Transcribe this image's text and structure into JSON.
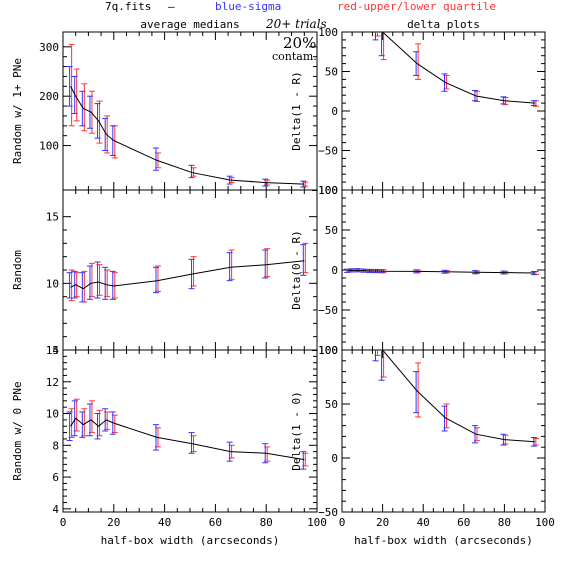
{
  "header": {
    "file": "7q.fits",
    "dash": "—",
    "blue_label": "blue-sigma",
    "red_label": "red-upper/lower quartile",
    "trials": "20+ trials",
    "contam_pct": "20%",
    "contam_word": "contam."
  },
  "colors": {
    "line": "#000000",
    "sigma": "#3333ff",
    "quartile": "#ff3333"
  },
  "chart_data": [
    {
      "id": "p1",
      "type": "line",
      "title": "average medians",
      "ylabel": "Random w/ 1+ PNe",
      "xlabel": "",
      "xlim": [
        0,
        100
      ],
      "ylim": [
        10,
        330
      ],
      "xticks": [
        0,
        20,
        40,
        60,
        80,
        100
      ],
      "show_xticklabels": false,
      "yticks": [
        100,
        200,
        300
      ],
      "x": [
        3,
        5,
        8,
        11,
        14,
        17,
        20,
        37,
        51,
        66,
        80,
        95
      ],
      "y": [
        220,
        200,
        175,
        168,
        150,
        123,
        110,
        70,
        45,
        30,
        25,
        22
      ],
      "sigma_lo": [
        180,
        165,
        140,
        135,
        115,
        90,
        80,
        50,
        35,
        22,
        18,
        16
      ],
      "sigma_hi": [
        260,
        240,
        210,
        200,
        185,
        155,
        140,
        95,
        60,
        38,
        32,
        28
      ],
      "q_lo": [
        140,
        150,
        130,
        125,
        105,
        85,
        75,
        55,
        38,
        25,
        20,
        18
      ],
      "q_hi": [
        305,
        255,
        225,
        210,
        190,
        160,
        140,
        85,
        55,
        35,
        30,
        26
      ]
    },
    {
      "id": "p2",
      "type": "line",
      "title": "delta plots",
      "ylabel": "Delta(1 - R)",
      "xlabel": "",
      "xlim": [
        0,
        100
      ],
      "ylim": [
        -100,
        100
      ],
      "xticks": [
        0,
        20,
        40,
        60,
        80,
        100
      ],
      "show_xticklabels": false,
      "yticks": [
        -100,
        -50,
        0,
        50,
        100
      ],
      "ytick_labels": [
        "−100",
        "−50",
        "0",
        "50",
        "100"
      ],
      "x": [
        17,
        20,
        37,
        51,
        66,
        80,
        95
      ],
      "y": [
        110,
        100,
        60,
        36,
        19,
        13,
        10
      ],
      "sigma_lo": [
        90,
        70,
        45,
        25,
        13,
        9,
        7
      ],
      "sigma_hi": [
        140,
        125,
        75,
        47,
        26,
        18,
        13
      ],
      "q_lo": [
        95,
        65,
        40,
        28,
        12,
        8,
        6
      ],
      "q_hi": [
        135,
        120,
        85,
        45,
        25,
        17,
        13
      ]
    },
    {
      "id": "p3",
      "type": "line",
      "title": "",
      "ylabel": "Random",
      "xlabel": "",
      "xlim": [
        0,
        100
      ],
      "ylim": [
        5,
        17
      ],
      "xticks": [
        0,
        20,
        40,
        60,
        80,
        100
      ],
      "show_xticklabels": false,
      "yticks": [
        5,
        10,
        15
      ],
      "x": [
        3,
        5,
        8,
        11,
        14,
        17,
        20,
        37,
        51,
        66,
        80,
        95
      ],
      "y": [
        9.7,
        9.9,
        9.6,
        10.0,
        10.1,
        9.9,
        9.8,
        10.2,
        10.7,
        11.2,
        11.4,
        11.7
      ],
      "sigma_lo": [
        8.9,
        8.9,
        8.6,
        8.8,
        8.9,
        8.8,
        8.8,
        9.3,
        9.6,
        10.2,
        10.4,
        10.6
      ],
      "sigma_hi": [
        10.8,
        10.9,
        10.8,
        11.3,
        11.6,
        11.2,
        10.9,
        11.2,
        11.8,
        12.3,
        12.5,
        12.9
      ],
      "q_lo": [
        8.7,
        9.0,
        8.6,
        9.0,
        9.1,
        9.0,
        8.9,
        9.4,
        9.8,
        10.3,
        10.5,
        10.8
      ],
      "q_hi": [
        11.0,
        10.8,
        10.9,
        11.5,
        11.4,
        11.0,
        10.8,
        11.3,
        12.0,
        12.5,
        12.6,
        13.0
      ]
    },
    {
      "id": "p4",
      "type": "line",
      "title": "",
      "ylabel": "Delta(0 - R)",
      "xlabel": "",
      "xlim": [
        0,
        100
      ],
      "ylim": [
        -100,
        100
      ],
      "xticks": [
        0,
        20,
        40,
        60,
        80,
        100
      ],
      "show_xticklabels": false,
      "yticks": [
        -100,
        -50,
        0,
        50,
        100
      ],
      "ytick_labels": [
        "−100",
        "−50",
        "0",
        "50",
        "100"
      ],
      "x": [
        3,
        5,
        8,
        11,
        14,
        17,
        20,
        37,
        51,
        66,
        80,
        95
      ],
      "y": [
        -1,
        -0.5,
        -0.3,
        -0.8,
        -1.2,
        -1.3,
        -1.5,
        -1.8,
        -2.2,
        -2.8,
        -3.2,
        -3.8
      ],
      "sigma_lo": [
        -3,
        -2.5,
        -2.3,
        -2.8,
        -3.2,
        -3.3,
        -3.5,
        -3.6,
        -4.0,
        -4.8,
        -5.0,
        -5.8
      ],
      "sigma_hi": [
        1,
        1.5,
        1.7,
        1.2,
        0.8,
        0.7,
        0.5,
        0.2,
        -0.4,
        -0.8,
        -1.4,
        -1.8
      ],
      "q_lo": [
        -2.6,
        -2.2,
        -2.0,
        -2.4,
        -2.8,
        -2.9,
        -3.2,
        -3.4,
        -3.8,
        -4.4,
        -4.8,
        -5.6
      ],
      "q_hi": [
        0.6,
        1.2,
        1.4,
        0.8,
        0.4,
        0.3,
        0.2,
        0.0,
        -0.6,
        -1.2,
        -1.6,
        -2.0
      ]
    },
    {
      "id": "p5",
      "type": "line",
      "title": "",
      "ylabel": "Random w/ 0 PNe",
      "xlabel": "half-box width (arcseconds)",
      "xlim": [
        0,
        100
      ],
      "ylim": [
        3.8,
        14
      ],
      "xticks": [
        0,
        20,
        40,
        60,
        80,
        100
      ],
      "show_xticklabels": true,
      "yticks": [
        4,
        6,
        8,
        10,
        12,
        14
      ],
      "x": [
        3,
        5,
        8,
        11,
        14,
        17,
        20,
        37,
        51,
        66,
        80,
        95
      ],
      "y": [
        9.2,
        9.7,
        9.3,
        9.6,
        9.2,
        9.6,
        9.4,
        8.5,
        8.1,
        7.6,
        7.5,
        7.1
      ],
      "sigma_lo": [
        8.3,
        8.6,
        8.5,
        8.6,
        8.4,
        8.9,
        8.7,
        7.7,
        7.5,
        7.0,
        6.9,
        6.5
      ],
      "sigma_hi": [
        10.1,
        10.8,
        10.1,
        10.6,
        10.0,
        10.3,
        10.1,
        9.3,
        8.8,
        8.2,
        8.1,
        7.6
      ],
      "q_lo": [
        8.5,
        8.9,
        8.6,
        8.8,
        8.6,
        9.0,
        8.8,
        7.9,
        7.6,
        7.2,
        7.0,
        6.7
      ],
      "q_hi": [
        10.3,
        10.9,
        10.3,
        10.8,
        10.2,
        10.1,
        9.9,
        9.1,
        8.6,
        8.0,
        7.9,
        7.5
      ]
    },
    {
      "id": "p6",
      "type": "line",
      "title": "",
      "ylabel": "Delta(1 - 0)",
      "xlabel": "half-box width (arcseconds)",
      "xlim": [
        0,
        100
      ],
      "ylim": [
        -50,
        100
      ],
      "xticks": [
        0,
        20,
        40,
        60,
        80,
        100
      ],
      "show_xticklabels": true,
      "yticks": [
        -50,
        0,
        50,
        100
      ],
      "ytick_labels": [
        "−50",
        "0",
        "50",
        "100"
      ],
      "x": [
        17,
        20,
        37,
        51,
        66,
        80,
        95
      ],
      "y": [
        115,
        100,
        62,
        37,
        22,
        17,
        15
      ],
      "sigma_lo": [
        90,
        72,
        42,
        25,
        14,
        12,
        11
      ],
      "sigma_hi": [
        140,
        128,
        80,
        48,
        30,
        22,
        19
      ],
      "q_lo": [
        95,
        75,
        38,
        28,
        16,
        13,
        12
      ],
      "q_hi": [
        135,
        125,
        88,
        50,
        28,
        21,
        18
      ]
    }
  ]
}
